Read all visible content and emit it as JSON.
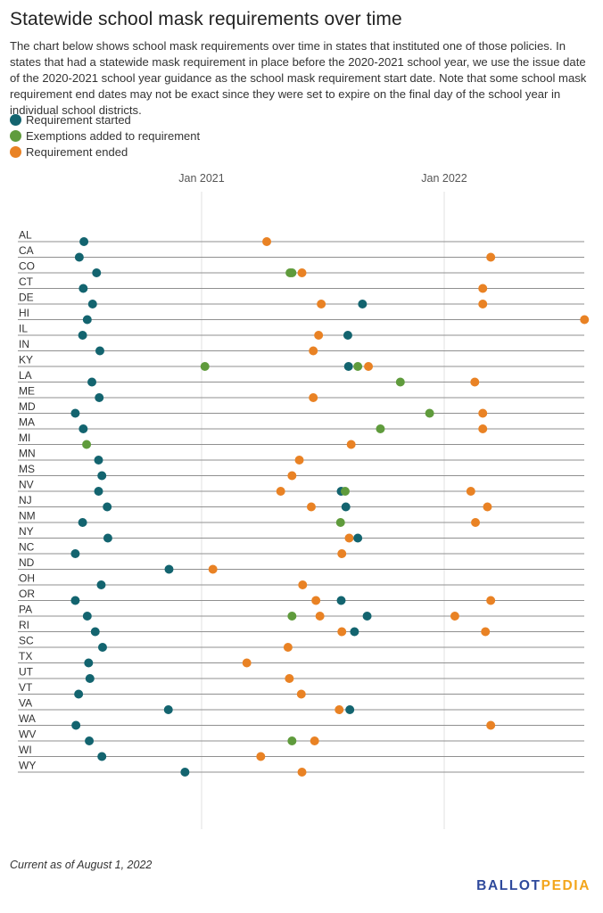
{
  "title": "Statewide school mask requirements over time",
  "subtitle": "The chart below shows school mask requirements over time in states that instituted one of those policies. In states that had a statewide mask requirement in place before the 2020-2021 school year, we use the issue date of the 2020-2021 school year guidance as the school mask requirement start date. Note that some school mask requirement end dates may not be exact since they were set to expire on the final day of the school year in individual school districts.",
  "legend": [
    {
      "label": "Requirement started",
      "color": "#13646f",
      "key": "start"
    },
    {
      "label": "Exemptions added to requirement",
      "color": "#5f9b3c",
      "key": "exempt"
    },
    {
      "label": "Requirement ended",
      "color": "#e98224",
      "key": "end"
    }
  ],
  "footnote": "Current as of August 1, 2022",
  "logo": {
    "part1": "BALLOT",
    "part2": "PEDIA"
  },
  "chart_data": {
    "type": "scatter",
    "x_ticks": [
      {
        "label": "Jan 2021",
        "date": "2021-01-01"
      },
      {
        "label": "Jan 2022",
        "date": "2022-01-01"
      }
    ],
    "x_range": [
      "2020-04-15",
      "2022-08-01"
    ],
    "series_colors": {
      "start": "#13646f",
      "exempt": "#5f9b3c",
      "end": "#e98224"
    },
    "states": [
      {
        "state": "AL",
        "events": [
          {
            "type": "start",
            "date": "2020-07-08"
          },
          {
            "type": "end",
            "date": "2021-04-09"
          }
        ]
      },
      {
        "state": "CA",
        "events": [
          {
            "type": "start",
            "date": "2020-07-01"
          },
          {
            "type": "end",
            "date": "2022-03-12"
          }
        ]
      },
      {
        "state": "CO",
        "events": [
          {
            "type": "start",
            "date": "2020-07-27"
          },
          {
            "type": "exempt",
            "date": "2021-05-14"
          },
          {
            "type": "exempt",
            "date": "2021-05-17"
          },
          {
            "type": "end",
            "date": "2021-06-01"
          }
        ]
      },
      {
        "state": "CT",
        "events": [
          {
            "type": "start",
            "date": "2020-07-07"
          },
          {
            "type": "end",
            "date": "2022-02-28"
          }
        ]
      },
      {
        "state": "DE",
        "events": [
          {
            "type": "start",
            "date": "2020-07-21"
          },
          {
            "type": "end",
            "date": "2021-06-30"
          },
          {
            "type": "start",
            "date": "2021-08-31"
          },
          {
            "type": "end",
            "date": "2022-02-28"
          }
        ]
      },
      {
        "state": "HI",
        "events": [
          {
            "type": "start",
            "date": "2020-07-13"
          },
          {
            "type": "end",
            "date": "2022-07-31"
          }
        ]
      },
      {
        "state": "IL",
        "events": [
          {
            "type": "start",
            "date": "2020-07-06"
          },
          {
            "type": "end",
            "date": "2021-06-26"
          },
          {
            "type": "start",
            "date": "2021-08-09"
          }
        ]
      },
      {
        "state": "IN",
        "events": [
          {
            "type": "start",
            "date": "2020-08-01"
          },
          {
            "type": "end",
            "date": "2021-06-18"
          }
        ]
      },
      {
        "state": "KY",
        "events": [
          {
            "type": "exempt",
            "date": "2021-01-06"
          },
          {
            "type": "start",
            "date": "2021-08-10"
          },
          {
            "type": "exempt",
            "date": "2021-08-24"
          },
          {
            "type": "end",
            "date": "2021-09-09"
          }
        ]
      },
      {
        "state": "LA",
        "events": [
          {
            "type": "start",
            "date": "2020-07-20"
          },
          {
            "type": "exempt",
            "date": "2021-10-27"
          },
          {
            "type": "end",
            "date": "2022-02-16"
          }
        ]
      },
      {
        "state": "ME",
        "events": [
          {
            "type": "start",
            "date": "2020-07-31"
          },
          {
            "type": "end",
            "date": "2021-06-18"
          }
        ]
      },
      {
        "state": "MD",
        "events": [
          {
            "type": "start",
            "date": "2020-06-25"
          },
          {
            "type": "exempt",
            "date": "2021-12-10"
          },
          {
            "type": "end",
            "date": "2022-02-28"
          }
        ]
      },
      {
        "state": "MA",
        "events": [
          {
            "type": "start",
            "date": "2020-07-07"
          },
          {
            "type": "exempt",
            "date": "2021-09-27"
          },
          {
            "type": "end",
            "date": "2022-02-28"
          }
        ]
      },
      {
        "state": "MI",
        "events": [
          {
            "type": "exempt",
            "date": "2020-07-12"
          },
          {
            "type": "end",
            "date": "2021-08-14"
          }
        ]
      },
      {
        "state": "MN",
        "events": [
          {
            "type": "start",
            "date": "2020-07-30"
          },
          {
            "type": "end",
            "date": "2021-05-28"
          }
        ]
      },
      {
        "state": "MS",
        "events": [
          {
            "type": "start",
            "date": "2020-08-04"
          },
          {
            "type": "end",
            "date": "2021-05-17"
          }
        ]
      },
      {
        "state": "NV",
        "events": [
          {
            "type": "start",
            "date": "2020-07-30"
          },
          {
            "type": "end",
            "date": "2021-04-30"
          },
          {
            "type": "start",
            "date": "2021-07-30"
          },
          {
            "type": "exempt",
            "date": "2021-08-05"
          },
          {
            "type": "end",
            "date": "2022-02-10"
          }
        ]
      },
      {
        "state": "NJ",
        "events": [
          {
            "type": "start",
            "date": "2020-08-12"
          },
          {
            "type": "end",
            "date": "2021-06-15"
          },
          {
            "type": "start",
            "date": "2021-08-06"
          },
          {
            "type": "end",
            "date": "2022-03-07"
          }
        ]
      },
      {
        "state": "NM",
        "events": [
          {
            "type": "start",
            "date": "2020-07-06"
          },
          {
            "type": "exempt",
            "date": "2021-07-29"
          },
          {
            "type": "end",
            "date": "2022-02-17"
          }
        ]
      },
      {
        "state": "NY",
        "events": [
          {
            "type": "start",
            "date": "2020-08-13"
          },
          {
            "type": "end",
            "date": "2021-08-11"
          },
          {
            "type": "start",
            "date": "2021-08-24"
          }
        ]
      },
      {
        "state": "NC",
        "events": [
          {
            "type": "start",
            "date": "2020-06-25"
          },
          {
            "type": "end",
            "date": "2021-07-31"
          }
        ]
      },
      {
        "state": "ND",
        "events": [
          {
            "type": "start",
            "date": "2020-11-13"
          },
          {
            "type": "end",
            "date": "2021-01-18"
          }
        ]
      },
      {
        "state": "OH",
        "events": [
          {
            "type": "start",
            "date": "2020-08-03"
          },
          {
            "type": "end",
            "date": "2021-06-02"
          }
        ]
      },
      {
        "state": "OR",
        "events": [
          {
            "type": "start",
            "date": "2020-06-25"
          },
          {
            "type": "end",
            "date": "2021-06-22"
          },
          {
            "type": "start",
            "date": "2021-07-30"
          },
          {
            "type": "end",
            "date": "2022-03-12"
          }
        ]
      },
      {
        "state": "PA",
        "events": [
          {
            "type": "start",
            "date": "2020-07-13"
          },
          {
            "type": "exempt",
            "date": "2021-05-17"
          },
          {
            "type": "end",
            "date": "2021-06-28"
          },
          {
            "type": "start",
            "date": "2021-09-07"
          },
          {
            "type": "end",
            "date": "2022-01-17"
          }
        ]
      },
      {
        "state": "RI",
        "events": [
          {
            "type": "start",
            "date": "2020-07-25"
          },
          {
            "type": "end",
            "date": "2021-07-31"
          },
          {
            "type": "start",
            "date": "2021-08-19"
          },
          {
            "type": "end",
            "date": "2022-03-04"
          }
        ]
      },
      {
        "state": "SC",
        "events": [
          {
            "type": "start",
            "date": "2020-08-05"
          },
          {
            "type": "end",
            "date": "2021-05-11"
          }
        ]
      },
      {
        "state": "TX",
        "events": [
          {
            "type": "start",
            "date": "2020-07-15"
          },
          {
            "type": "end",
            "date": "2021-03-10"
          }
        ]
      },
      {
        "state": "UT",
        "events": [
          {
            "type": "start",
            "date": "2020-07-17"
          },
          {
            "type": "end",
            "date": "2021-05-13"
          }
        ]
      },
      {
        "state": "VT",
        "events": [
          {
            "type": "start",
            "date": "2020-06-30"
          },
          {
            "type": "end",
            "date": "2021-05-31"
          }
        ]
      },
      {
        "state": "VA",
        "events": [
          {
            "type": "start",
            "date": "2020-11-12"
          },
          {
            "type": "end",
            "date": "2021-07-27"
          },
          {
            "type": "start",
            "date": "2021-08-12"
          }
        ]
      },
      {
        "state": "WA",
        "events": [
          {
            "type": "start",
            "date": "2020-06-26"
          },
          {
            "type": "end",
            "date": "2022-03-12"
          }
        ]
      },
      {
        "state": "WV",
        "events": [
          {
            "type": "start",
            "date": "2020-07-16"
          },
          {
            "type": "exempt",
            "date": "2021-05-17"
          },
          {
            "type": "end",
            "date": "2021-06-20"
          }
        ]
      },
      {
        "state": "WI",
        "events": [
          {
            "type": "start",
            "date": "2020-08-04"
          },
          {
            "type": "end",
            "date": "2021-03-31"
          }
        ]
      },
      {
        "state": "WY",
        "events": [
          {
            "type": "start",
            "date": "2020-12-07"
          },
          {
            "type": "end",
            "date": "2021-06-01"
          }
        ]
      }
    ]
  }
}
